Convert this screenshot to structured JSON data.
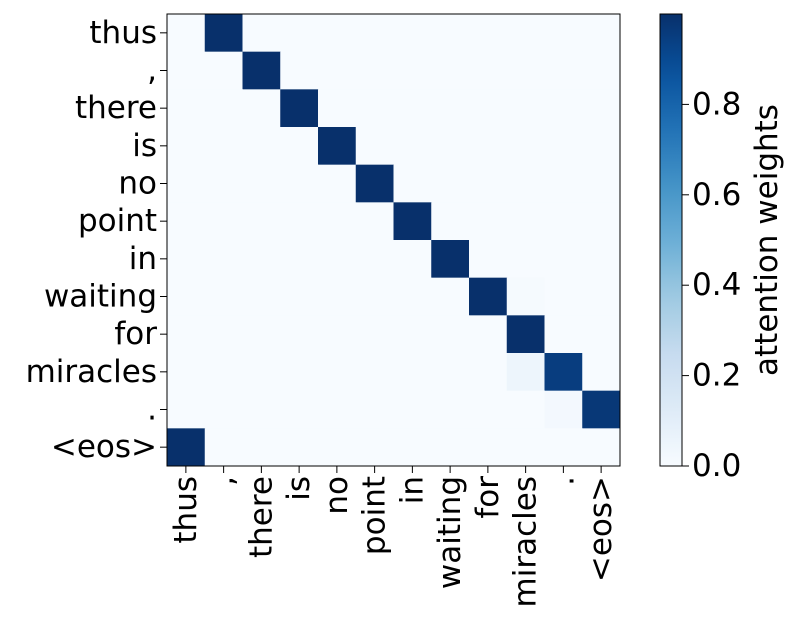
{
  "chart_data": {
    "type": "heatmap",
    "rows": [
      "thus",
      ",",
      "there",
      "is",
      "no",
      "point",
      "in",
      "waiting",
      "for",
      "miracles",
      ".",
      "<eos>"
    ],
    "columns": [
      "thus",
      ",",
      "there",
      "is",
      "no",
      "point",
      "in",
      "waiting",
      "for",
      "miracles",
      ".",
      "<eos>"
    ],
    "values": [
      [
        0,
        1,
        0,
        0,
        0,
        0,
        0,
        0,
        0,
        0,
        0,
        0
      ],
      [
        0,
        0,
        1,
        0,
        0,
        0,
        0,
        0,
        0,
        0,
        0,
        0
      ],
      [
        0,
        0,
        0,
        1,
        0,
        0,
        0,
        0,
        0,
        0,
        0,
        0
      ],
      [
        0,
        0,
        0,
        0,
        1,
        0,
        0,
        0,
        0,
        0,
        0,
        0
      ],
      [
        0,
        0,
        0,
        0,
        0,
        1,
        0,
        0,
        0,
        0,
        0,
        0
      ],
      [
        0,
        0,
        0,
        0,
        0,
        0,
        1,
        0,
        0,
        0,
        0,
        0
      ],
      [
        0,
        0,
        0,
        0,
        0,
        0,
        0,
        1,
        0,
        0,
        0,
        0
      ],
      [
        0,
        0,
        0,
        0,
        0,
        0,
        0,
        0,
        1,
        0.01,
        0,
        0
      ],
      [
        0,
        0,
        0,
        0,
        0,
        0,
        0,
        0,
        0,
        1,
        0,
        0
      ],
      [
        0,
        0,
        0,
        0,
        0,
        0,
        0,
        0,
        0,
        0.05,
        0.95,
        0
      ],
      [
        0,
        0,
        0,
        0,
        0,
        0,
        0,
        0,
        0,
        0,
        0.02,
        0.97
      ],
      [
        1,
        0,
        0,
        0,
        0,
        0,
        0,
        0,
        0,
        0,
        0,
        0
      ]
    ],
    "colorbar": {
      "label": "attention weights",
      "ticks": [
        "0.0",
        "0.2",
        "0.4",
        "0.6",
        "0.8"
      ],
      "tick_values": [
        0,
        0.2,
        0.4,
        0.6,
        0.8
      ],
      "range": [
        0,
        1
      ]
    },
    "colormap": "Blues",
    "color_low": "#f7fbff",
    "color_high": "#08306b",
    "grid": false
  }
}
